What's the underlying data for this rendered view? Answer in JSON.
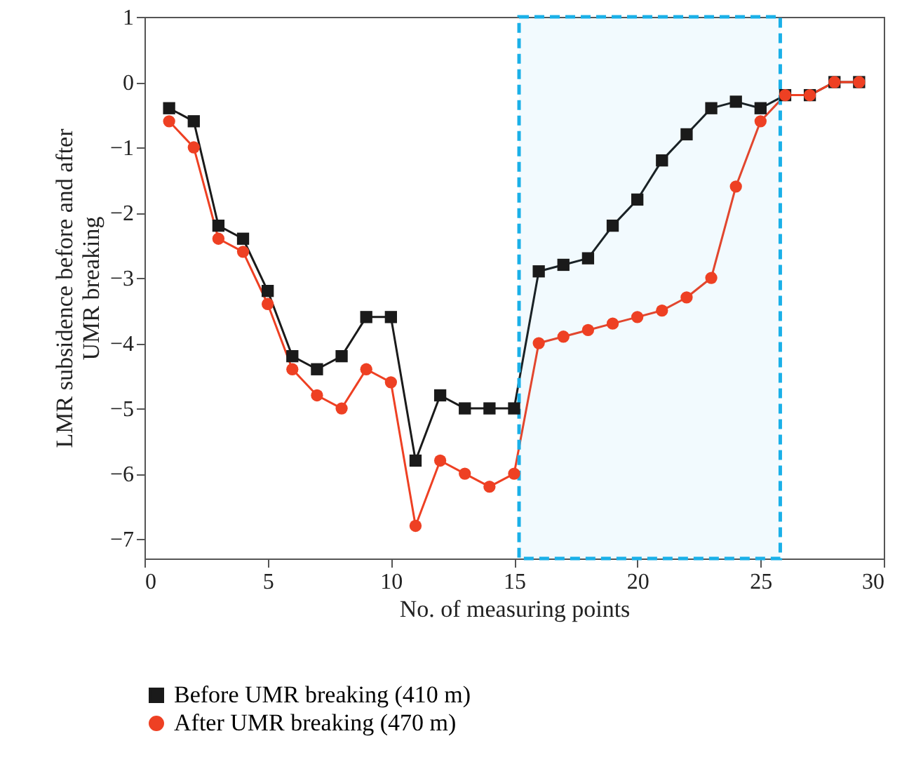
{
  "chart_data": {
    "type": "line",
    "xlabel": "No. of measuring points",
    "ylabel": "LMR subsidence before and after UMR breaking",
    "x": [
      1,
      2,
      3,
      4,
      5,
      6,
      7,
      8,
      9,
      10,
      11,
      12,
      13,
      14,
      15,
      16,
      17,
      18,
      19,
      20,
      21,
      22,
      23,
      24,
      25,
      26,
      27,
      28,
      29
    ],
    "series": [
      {
        "name": "Before UMR breaking (410 m)",
        "color": "#1a1a1a",
        "marker": "square",
        "values": [
          -0.4,
          -0.6,
          -2.2,
          -2.4,
          -3.2,
          -4.2,
          -4.4,
          -4.2,
          -3.6,
          -3.6,
          -5.8,
          -4.8,
          -5,
          -5,
          -5,
          -2.9,
          -2.8,
          -2.7,
          -2.2,
          -1.8,
          -1.2,
          -0.8,
          -0.4,
          -0.3,
          -0.4,
          -0.2,
          -0.2,
          0,
          0
        ]
      },
      {
        "name": "After UMR breaking (470 m)",
        "color": "#ee4023",
        "marker": "circle",
        "values": [
          -0.6,
          -1,
          -2.4,
          -2.6,
          -3.4,
          -4.4,
          -4.8,
          -5,
          -4.4,
          -4.6,
          -6.8,
          -5.8,
          -6,
          -6.2,
          -6,
          -4,
          -3.9,
          -3.8,
          -3.7,
          -3.6,
          -3.5,
          -3.3,
          -3,
          -1.6,
          -0.6,
          -0.2,
          -0.2,
          0,
          0
        ]
      }
    ],
    "bands": [
      {
        "axis": "x",
        "from": 15.2,
        "to": 25.8,
        "color": "#1ab0e8"
      }
    ],
    "xlim": [
      0,
      30
    ],
    "xticks": [
      0,
      5,
      10,
      15,
      20,
      25,
      30
    ],
    "ylim": [
      -7.3,
      1
    ],
    "yticks": [
      -7,
      -6,
      -5,
      -4,
      -3,
      -2,
      -1,
      0,
      1
    ],
    "grid": false,
    "legend": "bottom"
  }
}
